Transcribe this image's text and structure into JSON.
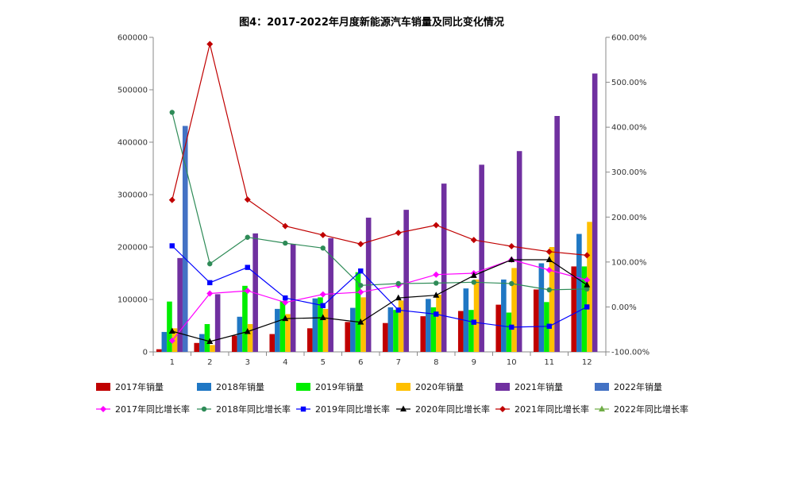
{
  "chart_data": {
    "type": "bar",
    "title": "图4：2017-2022年月度新能源汽车销量及同比变化情况",
    "categories": [
      "1",
      "2",
      "3",
      "4",
      "5",
      "6",
      "7",
      "8",
      "9",
      "10",
      "11",
      "12"
    ],
    "y_left": {
      "min": 0,
      "max": 600000,
      "ticks": [
        0,
        100000,
        200000,
        300000,
        400000,
        500000,
        600000
      ],
      "tick_labels": [
        "0",
        "100000",
        "200000",
        "300000",
        "400000",
        "500000",
        "600000"
      ]
    },
    "y_right": {
      "min": -100,
      "max": 600,
      "ticks": [
        -100,
        0,
        100,
        200,
        300,
        400,
        500,
        600
      ],
      "tick_labels": [
        "-100.00%",
        "0.00%",
        "100.00%",
        "200.00%",
        "300.00%",
        "400.00%",
        "500.00%",
        "600.00%"
      ]
    },
    "bar_series": [
      {
        "name": "2017年销量",
        "color": "#c00000",
        "values": [
          5000,
          17000,
          31000,
          34000,
          45000,
          57000,
          55000,
          68000,
          78000,
          90000,
          119000,
          163000
        ]
      },
      {
        "name": "2018年销量",
        "color": "#1f77c4",
        "values": [
          38000,
          34000,
          67000,
          82000,
          102000,
          84000,
          85000,
          101000,
          121000,
          138000,
          169000,
          225000
        ]
      },
      {
        "name": "2019年销量",
        "color": "#00ee00",
        "values": [
          96000,
          53000,
          126000,
          97000,
          104000,
          152000,
          80000,
          85000,
          80000,
          75000,
          95000,
          163000
        ]
      },
      {
        "name": "2020年销量",
        "color": "#ffc000",
        "values": [
          45000,
          13000,
          53000,
          72000,
          82000,
          104000,
          98000,
          109000,
          138000,
          160000,
          200000,
          248000
        ]
      },
      {
        "name": "2021年销量",
        "color": "#7030a0",
        "values": [
          179000,
          110000,
          226000,
          206000,
          217000,
          256000,
          271000,
          321000,
          357000,
          383000,
          450000,
          531000
        ]
      },
      {
        "name": "2022年销量",
        "color": "#4472c4",
        "values": [
          431000,
          null,
          null,
          null,
          null,
          null,
          null,
          null,
          null,
          null,
          null,
          null
        ]
      }
    ],
    "line_series": [
      {
        "name": "2017年同比增长率",
        "color": "#ff00ff",
        "marker": "diamond",
        "values": [
          -75,
          30,
          36,
          10,
          28,
          33,
          48,
          72,
          75,
          105,
          82,
          60
        ]
      },
      {
        "name": "2018年同比增长率",
        "color": "#2e8b57",
        "marker": "circle",
        "values": [
          433,
          96,
          155,
          142,
          131,
          48,
          52,
          53,
          55,
          52,
          38,
          40
        ]
      },
      {
        "name": "2019年同比增长率",
        "color": "#0000ff",
        "marker": "square",
        "values": [
          136,
          54,
          88,
          20,
          3,
          80,
          -7,
          -16,
          -34,
          -45,
          -43,
          0
        ]
      },
      {
        "name": "2020年同比增长率",
        "color": "#000000",
        "marker": "triangle",
        "values": [
          -54,
          -77,
          -55,
          -26,
          -24,
          -34,
          20,
          26,
          70,
          105,
          105,
          49
        ]
      },
      {
        "name": "2021年同比增长率",
        "color": "#c00000",
        "marker": "diamond",
        "values": [
          238,
          585,
          239,
          180,
          160,
          140,
          165,
          182,
          149,
          135,
          123,
          115
        ]
      },
      {
        "name": "2022年同比增长率",
        "color": "#70ad47",
        "marker": "triangle",
        "values": [
          null,
          null,
          null,
          null,
          null,
          null,
          null,
          null,
          null,
          null,
          null,
          null
        ]
      }
    ]
  }
}
